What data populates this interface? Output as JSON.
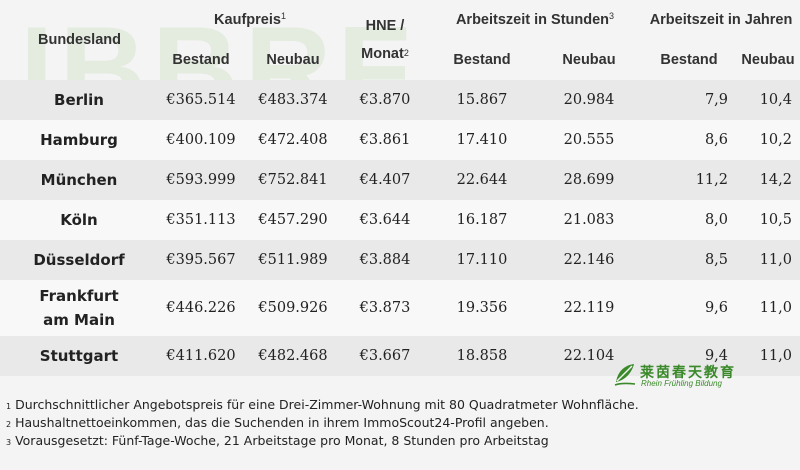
{
  "header": {
    "bundesland": "Bundesland",
    "kaufpreis": "Kaufpreis",
    "kaufpreis_sup": "1",
    "hne_line1": "HNE /",
    "hne_line2": "Monat",
    "hne_sup": "2",
    "arbeitszeit_stunden": "Arbeitszeit in Stunden",
    "arbeitszeit_stunden_sup": "3",
    "arbeitszeit_jahren": "Arbeitszeit in Jahren",
    "bestand": "Bestand",
    "neubau": "Neubau"
  },
  "rows": [
    {
      "city": "Berlin",
      "city2": "",
      "kp_bestand": "€365.514",
      "kp_neubau": "€483.374",
      "hne": "€3.870",
      "h_bestand": "15.867",
      "h_neubau": "20.984",
      "j_bestand": "7,9",
      "j_neubau": "10,4"
    },
    {
      "city": "Hamburg",
      "city2": "",
      "kp_bestand": "€400.109",
      "kp_neubau": "€472.408",
      "hne": "€3.861",
      "h_bestand": "17.410",
      "h_neubau": "20.555",
      "j_bestand": "8,6",
      "j_neubau": "10,2"
    },
    {
      "city": "München",
      "city2": "",
      "kp_bestand": "€593.999",
      "kp_neubau": "€752.841",
      "hne": "€4.407",
      "h_bestand": "22.644",
      "h_neubau": "28.699",
      "j_bestand": "11,2",
      "j_neubau": "14,2"
    },
    {
      "city": "Köln",
      "city2": "",
      "kp_bestand": "€351.113",
      "kp_neubau": "€457.290",
      "hne": "€3.644",
      "h_bestand": "16.187",
      "h_neubau": "21.083",
      "j_bestand": "8,0",
      "j_neubau": "10,5"
    },
    {
      "city": "Düsseldorf",
      "city2": "",
      "kp_bestand": "€395.567",
      "kp_neubau": "€511.989",
      "hne": "€3.884",
      "h_bestand": "17.110",
      "h_neubau": "22.146",
      "j_bestand": "8,5",
      "j_neubau": "11,0"
    },
    {
      "city": "Frankfurt",
      "city2": "am Main",
      "kp_bestand": "€446.226",
      "kp_neubau": "€509.926",
      "hne": "€3.873",
      "h_bestand": "19.356",
      "h_neubau": "22.119",
      "j_bestand": "9,6",
      "j_neubau": "11,0"
    },
    {
      "city": "Stuttgart",
      "city2": "",
      "kp_bestand": "€411.620",
      "kp_neubau": "€482.468",
      "hne": "€3.667",
      "h_bestand": "18.858",
      "h_neubau": "22.104",
      "j_bestand": "9,4",
      "j_neubau": "11,0"
    }
  ],
  "footnotes": [
    {
      "sup": "1",
      "text": "Durchschnittlicher Angebotspreis für eine Drei-Zimmer-Wohnung mit 80 Quadratmeter Wohnfläche."
    },
    {
      "sup": "2",
      "text": "Haushaltnettoeinkommen, das die Suchenden in ihrem ImmoScout24-Profil angeben."
    },
    {
      "sup": "3",
      "text": "Vorausgesetzt: Fünf-Tage-Woche, 21 Arbeitstage pro Monat, 8 Stunden pro Arbeitstag"
    }
  ],
  "logo": {
    "cn": "莱茵春天教育",
    "en": "Rhein Frühling Bildung"
  },
  "watermark": "IBBRF",
  "colors": {
    "accent_green": "#3a8a2a",
    "row_shade": "#e9e9e9",
    "background": "#f4f4f4"
  }
}
